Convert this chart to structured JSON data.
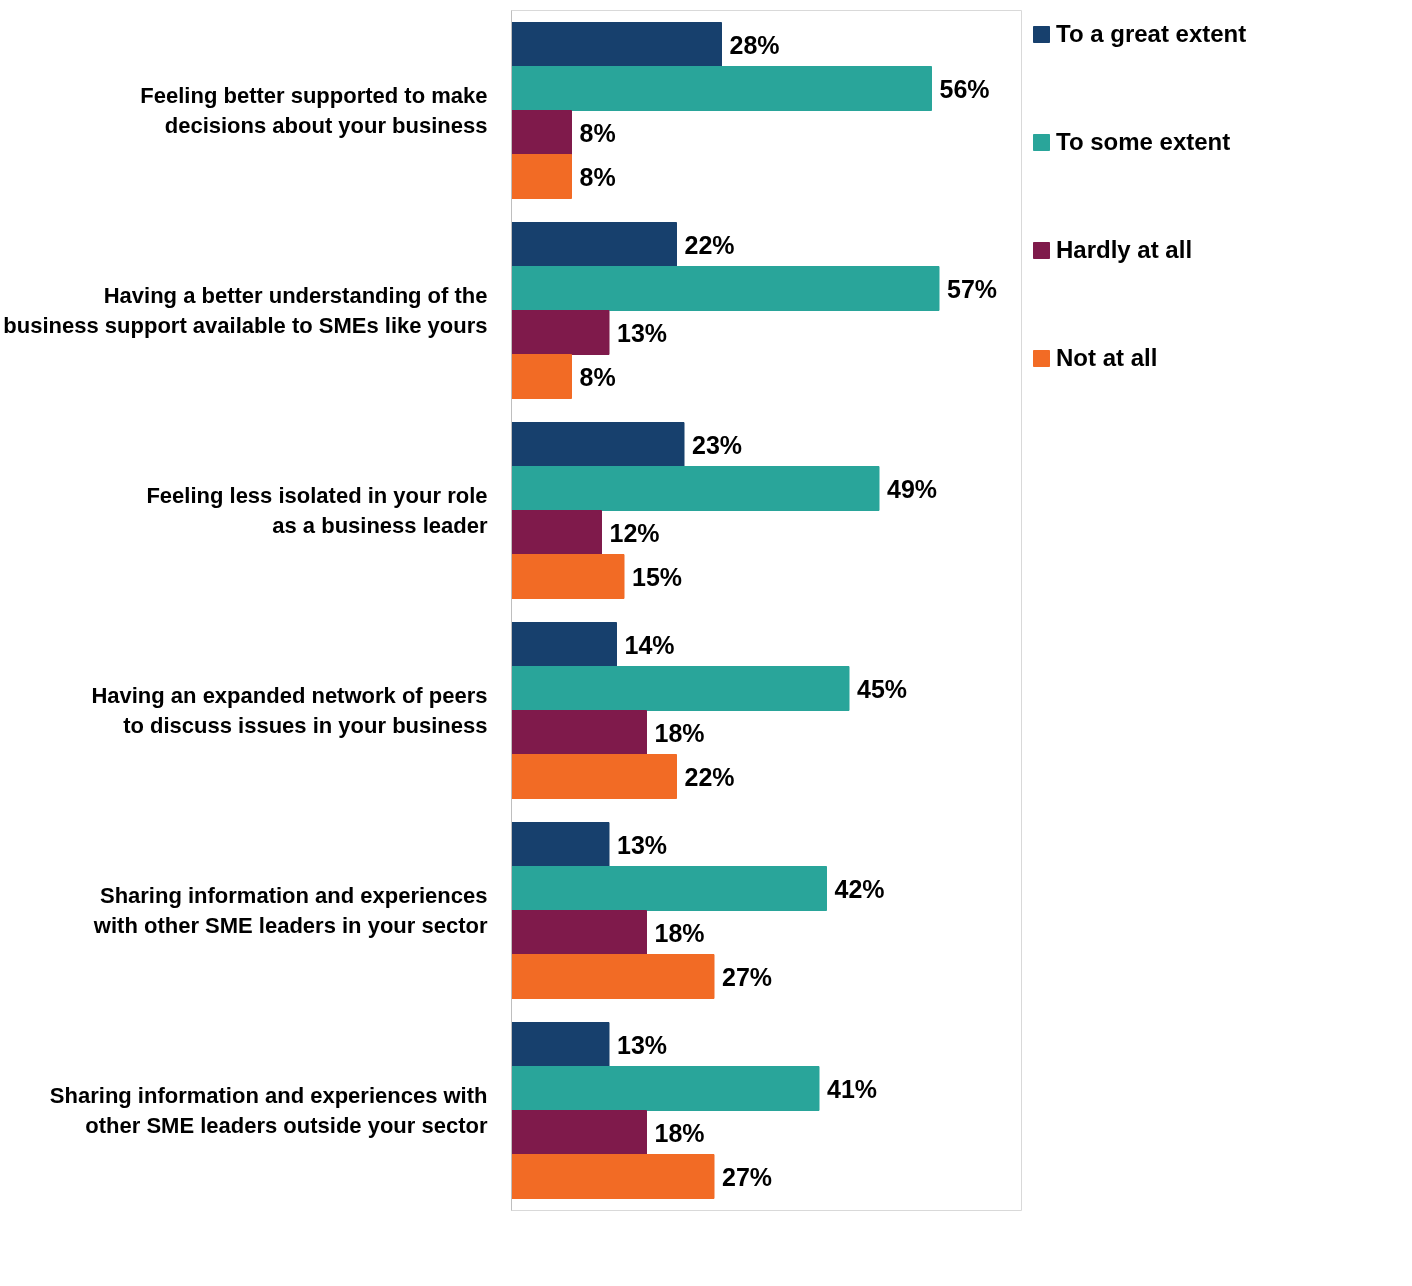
{
  "chart_data": {
    "type": "bar",
    "orientation": "horizontal",
    "categories": [
      "Feeling better supported to make\ndecisions about your business",
      "Having a better understanding of the\nbusiness support available to SMEs like yours",
      "Feeling less isolated in your role\nas a business leader",
      "Having an expanded network of peers\nto discuss issues in your business",
      "Sharing information and experiences\nwith other SME leaders in your sector",
      "Sharing information and experiences with\nother SME leaders outside your sector"
    ],
    "series": [
      {
        "name": "To a great extent",
        "color": "#17406d",
        "values": [
          28,
          22,
          23,
          14,
          13,
          13
        ],
        "value_labels": [
          "28%",
          "22%",
          "23%",
          "14%",
          "13%",
          "13%"
        ]
      },
      {
        "name": "To some extent",
        "color": "#29a59a",
        "values": [
          56,
          57,
          49,
          45,
          42,
          41
        ],
        "value_labels": [
          "56%",
          "57%",
          "49%",
          "45%",
          "42%",
          "41%"
        ]
      },
      {
        "name": "Hardly at all",
        "color": "#7f1a4b",
        "values": [
          8,
          13,
          12,
          18,
          18,
          18
        ],
        "value_labels": [
          "8%",
          "13%",
          "12%",
          "18%",
          "18%",
          "18%"
        ]
      },
      {
        "name": "Not at all",
        "color": "#f26b25",
        "values": [
          8,
          8,
          15,
          22,
          27,
          27
        ],
        "value_labels": [
          "8%",
          "8%",
          "15%",
          "22%",
          "27%",
          "27%"
        ]
      }
    ],
    "xlim": [
      0,
      68
    ],
    "tick_labels": "y",
    "grid": false,
    "legend": "right"
  }
}
